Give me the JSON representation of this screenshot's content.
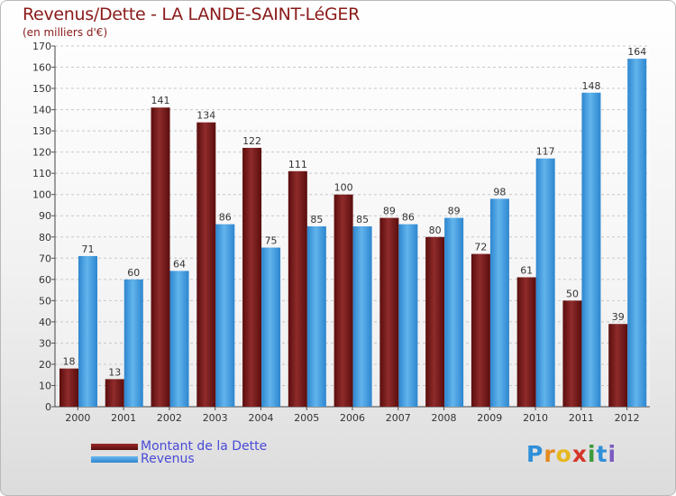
{
  "header": {
    "title": "Revenus/Dette - LA LANDE-SAINT-LéGER",
    "subtitle": "(en milliers d'€)"
  },
  "legend": {
    "dette_label": "Montant de la Dette",
    "revenus_label": "Revenus"
  },
  "logo": {
    "letters": [
      "P",
      "r",
      "o",
      "x",
      "i",
      "t",
      "i"
    ],
    "colors": [
      "#2f8fd8",
      "#e68a1e",
      "#e6b81e",
      "#d4372a",
      "#3a9a3a",
      "#2f8fd8",
      "#7a5bbf"
    ]
  },
  "colors": {
    "dette": "#7a1a1a",
    "revenus": "#4aa3e3"
  },
  "chart_data": {
    "type": "bar",
    "categories": [
      "2000",
      "2001",
      "2002",
      "2003",
      "2004",
      "2005",
      "2006",
      "2007",
      "2008",
      "2009",
      "2010",
      "2011",
      "2012"
    ],
    "series": [
      {
        "name": "Montant de la Dette",
        "values": [
          18,
          13,
          141,
          134,
          122,
          111,
          100,
          89,
          80,
          72,
          61,
          50,
          39
        ]
      },
      {
        "name": "Revenus",
        "values": [
          71,
          60,
          64,
          86,
          75,
          85,
          85,
          86,
          89,
          98,
          117,
          148,
          164
        ]
      }
    ],
    "ylim": [
      0,
      170
    ],
    "ytick_step": 10,
    "grid": true,
    "legend_position": "bottom-left"
  }
}
